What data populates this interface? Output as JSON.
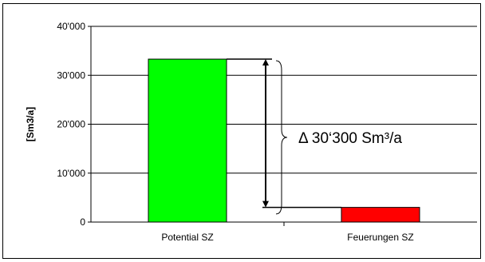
{
  "chart_data": {
    "type": "bar",
    "title": "",
    "xlabel": "",
    "ylabel": "[Sm3/a]",
    "ylim": [
      0,
      40000
    ],
    "yticks": [
      0,
      10000,
      20000,
      30000,
      40000
    ],
    "ytick_labels": [
      "0",
      "10'000",
      "20'000",
      "30'000",
      "40'000"
    ],
    "categories": [
      "Potential SZ",
      "Feuerungen SZ"
    ],
    "values": [
      33300,
      3000
    ],
    "colors": [
      "#00ff00",
      "#ff0000"
    ],
    "grid": true,
    "legend": "none",
    "annotation": {
      "text": "Δ 30‘300 Sm³/a",
      "from_value": 33300,
      "to_value": 3000
    }
  }
}
